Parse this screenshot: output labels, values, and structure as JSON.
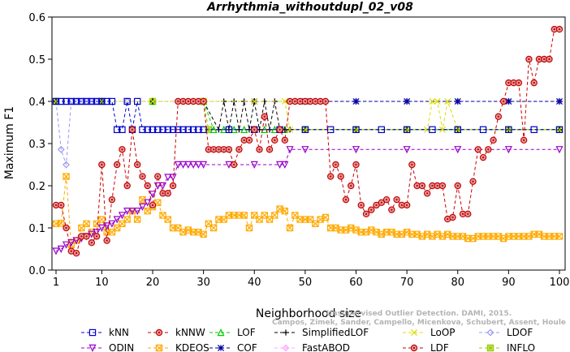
{
  "chart_data": {
    "type": "line",
    "title": "Arrhythmia_withoutdupl_02_v08",
    "xlabel": "Neighborhood size",
    "ylabel": "Maximum F1",
    "xlim": [
      0,
      100
    ],
    "ylim": [
      0,
      0.6
    ],
    "xticks": [
      1,
      10,
      20,
      30,
      40,
      50,
      60,
      70,
      80,
      90,
      100
    ],
    "yticks": [
      0.0,
      0.1,
      0.2,
      0.3,
      0.4,
      0.5,
      0.6
    ],
    "xtick_labels": [
      "1",
      "10",
      "20",
      "30",
      "40",
      "50",
      "60",
      "70",
      "80",
      "90",
      "100"
    ],
    "ytick_labels": [
      "0.0",
      "0.1",
      "0.2",
      "0.3",
      "0.4",
      "0.5",
      "0.6"
    ],
    "watermark": [
      "Campos, Zimek, Sander, Campello, Micenkova, Schubert, Assent, Houle",
      "Unsupervised Outlier Detection. DAMI, 2015."
    ],
    "series": [
      {
        "name": "kNN",
        "color": "#0000cc",
        "marker": "square",
        "x": [
          1,
          2,
          3,
          4,
          5,
          6,
          7,
          8,
          9,
          10,
          11,
          12,
          13,
          14,
          15,
          16,
          17,
          18,
          19,
          20,
          21,
          22,
          23,
          24,
          25,
          26,
          27,
          28,
          29,
          30,
          35,
          40,
          45,
          50,
          55,
          60,
          65,
          70,
          75,
          80,
          85,
          90,
          95,
          100
        ],
        "y": [
          0.4,
          0.4,
          0.4,
          0.4,
          0.4,
          0.4,
          0.4,
          0.4,
          0.4,
          0.4,
          0.4,
          0.4,
          0.333,
          0.333,
          0.4,
          0.333,
          0.4,
          0.333,
          0.333,
          0.333,
          0.333,
          0.333,
          0.333,
          0.333,
          0.333,
          0.333,
          0.333,
          0.333,
          0.333,
          0.333,
          0.333,
          0.333,
          0.333,
          0.333,
          0.333,
          0.333,
          0.333,
          0.333,
          0.333,
          0.333,
          0.333,
          0.333,
          0.333,
          0.333
        ]
      },
      {
        "name": "kNNW",
        "color": "#cc0000",
        "marker": "circle",
        "x": [
          1,
          2,
          3,
          4,
          5,
          6,
          7,
          8,
          9,
          10,
          11,
          12,
          13,
          14,
          15,
          16,
          17,
          18,
          19,
          20,
          21,
          22,
          23,
          24,
          25,
          26,
          27,
          28,
          29,
          30,
          31,
          32,
          33,
          34,
          35,
          36,
          37,
          38,
          39,
          40,
          41,
          42,
          43,
          44,
          45,
          46,
          47,
          48,
          49,
          50,
          51,
          52,
          53,
          54,
          55,
          56,
          57,
          58,
          59,
          60,
          61,
          62,
          63,
          64,
          65,
          66,
          67,
          68,
          69,
          70,
          71,
          72,
          73,
          74,
          75,
          76,
          77,
          78,
          79,
          80,
          81,
          82,
          83,
          84,
          85,
          86,
          87,
          88,
          89,
          90,
          91,
          92,
          93,
          94,
          95,
          96,
          97,
          98,
          99,
          100
        ],
        "y": [
          0.154,
          0.154,
          0.1,
          0.045,
          0.04,
          0.08,
          0.08,
          0.065,
          0.08,
          0.25,
          0.07,
          0.167,
          0.25,
          0.286,
          0.2,
          0.333,
          0.25,
          0.222,
          0.2,
          0.154,
          0.222,
          0.182,
          0.182,
          0.2,
          0.4,
          0.4,
          0.4,
          0.4,
          0.4,
          0.4,
          0.286,
          0.286,
          0.286,
          0.286,
          0.286,
          0.25,
          0.286,
          0.308,
          0.308,
          0.333,
          0.286,
          0.364,
          0.286,
          0.308,
          0.333,
          0.308,
          0.4,
          0.4,
          0.4,
          0.4,
          0.4,
          0.4,
          0.4,
          0.4,
          0.222,
          0.25,
          0.222,
          0.167,
          0.2,
          0.25,
          0.154,
          0.133,
          0.143,
          0.154,
          0.16,
          0.167,
          0.143,
          0.167,
          0.154,
          0.154,
          0.25,
          0.2,
          0.2,
          0.182,
          0.2,
          0.2,
          0.2,
          0.121,
          0.125,
          0.2,
          0.133,
          0.133,
          0.21,
          0.286,
          0.267,
          0.286,
          0.308,
          0.364,
          0.4,
          0.444,
          0.444,
          0.444,
          0.308,
          0.5,
          0.444,
          0.5,
          0.5,
          0.5,
          0.571,
          0.571
        ]
      },
      {
        "name": "LOF",
        "color": "#00cc00",
        "marker": "triangle",
        "x": [
          1,
          10,
          20,
          30,
          32,
          34,
          36,
          38,
          40,
          42,
          44,
          46,
          50,
          60,
          70,
          80,
          90,
          100
        ],
        "y": [
          0.4,
          0.4,
          0.4,
          0.4,
          0.333,
          0.333,
          0.333,
          0.333,
          0.333,
          0.333,
          0.333,
          0.333,
          0.333,
          0.333,
          0.333,
          0.333,
          0.333,
          0.333
        ]
      },
      {
        "name": "SimplifiedLOF",
        "color": "#000000",
        "marker": "plus",
        "x": [
          1,
          10,
          20,
          30,
          33,
          34,
          35,
          36,
          37,
          38,
          39,
          40,
          41,
          42,
          43,
          44,
          45,
          46,
          47,
          50,
          60,
          70,
          80,
          90,
          100
        ],
        "y": [
          0.4,
          0.4,
          0.4,
          0.4,
          0.333,
          0.4,
          0.333,
          0.4,
          0.333,
          0.4,
          0.333,
          0.4,
          0.333,
          0.4,
          0.333,
          0.4,
          0.333,
          0.333,
          0.333,
          0.333,
          0.333,
          0.333,
          0.333,
          0.333,
          0.333
        ]
      },
      {
        "name": "LoOP",
        "color": "#dddd00",
        "marker": "x",
        "x": [
          1,
          10,
          20,
          30,
          40,
          46,
          47,
          50,
          60,
          70,
          74,
          75,
          76,
          77,
          78,
          80,
          90,
          100
        ],
        "y": [
          0.4,
          0.4,
          0.4,
          0.4,
          0.4,
          0.4,
          0.333,
          0.333,
          0.333,
          0.333,
          0.333,
          0.4,
          0.4,
          0.333,
          0.4,
          0.333,
          0.333,
          0.333
        ]
      },
      {
        "name": "LDOF",
        "color": "#9999ee",
        "marker": "diamond",
        "x": [
          1,
          2,
          3,
          4,
          5,
          6,
          7,
          8,
          9,
          10,
          15,
          20,
          30,
          40,
          50,
          60,
          70,
          80,
          90,
          100
        ],
        "y": [
          0.4,
          0.286,
          0.25,
          0.4,
          0.4,
          0.4,
          0.4,
          0.4,
          0.4,
          0.4,
          0.4,
          0.4,
          0.4,
          0.4,
          0.4,
          0.4,
          0.4,
          0.4,
          0.4,
          0.4
        ]
      },
      {
        "name": "ODIN",
        "color": "#9900cc",
        "marker": "triangle-down",
        "x": [
          1,
          2,
          3,
          4,
          5,
          6,
          7,
          8,
          9,
          10,
          11,
          12,
          13,
          14,
          15,
          16,
          17,
          18,
          19,
          20,
          21,
          22,
          23,
          24,
          25,
          26,
          27,
          28,
          29,
          30,
          35,
          40,
          45,
          46,
          47,
          50,
          60,
          70,
          80,
          90,
          100
        ],
        "y": [
          0.045,
          0.05,
          0.06,
          0.065,
          0.07,
          0.075,
          0.08,
          0.085,
          0.09,
          0.1,
          0.105,
          0.11,
          0.12,
          0.13,
          0.14,
          0.14,
          0.14,
          0.15,
          0.16,
          0.18,
          0.2,
          0.2,
          0.22,
          0.22,
          0.25,
          0.25,
          0.25,
          0.25,
          0.25,
          0.25,
          0.25,
          0.25,
          0.25,
          0.25,
          0.286,
          0.286,
          0.286,
          0.286,
          0.286,
          0.286,
          0.286
        ]
      },
      {
        "name": "KDEOS",
        "color": "#ffaa00",
        "marker": "square-x",
        "x": [
          1,
          2,
          3,
          4,
          5,
          6,
          7,
          8,
          9,
          10,
          11,
          12,
          13,
          14,
          15,
          16,
          17,
          18,
          19,
          20,
          21,
          22,
          23,
          24,
          25,
          26,
          27,
          28,
          29,
          30,
          31,
          32,
          33,
          34,
          35,
          36,
          37,
          38,
          39,
          40,
          41,
          42,
          43,
          44,
          45,
          46,
          47,
          48,
          49,
          50,
          51,
          52,
          53,
          54,
          55,
          56,
          57,
          58,
          59,
          60,
          61,
          62,
          63,
          64,
          65,
          66,
          67,
          68,
          69,
          70,
          71,
          72,
          73,
          74,
          75,
          76,
          77,
          78,
          79,
          80,
          81,
          82,
          83,
          84,
          85,
          86,
          87,
          88,
          89,
          90,
          91,
          92,
          93,
          94,
          95,
          96,
          97,
          98,
          99,
          100
        ],
        "y": [
          0.11,
          0.111,
          0.222,
          0.06,
          0.07,
          0.1,
          0.11,
          0.09,
          0.11,
          0.12,
          0.09,
          0.09,
          0.1,
          0.11,
          0.12,
          0.14,
          0.12,
          0.167,
          0.14,
          0.15,
          0.16,
          0.13,
          0.12,
          0.1,
          0.1,
          0.09,
          0.095,
          0.09,
          0.09,
          0.085,
          0.11,
          0.1,
          0.12,
          0.12,
          0.13,
          0.13,
          0.13,
          0.13,
          0.1,
          0.13,
          0.12,
          0.13,
          0.12,
          0.13,
          0.145,
          0.14,
          0.1,
          0.13,
          0.12,
          0.12,
          0.12,
          0.11,
          0.12,
          0.125,
          0.1,
          0.1,
          0.095,
          0.095,
          0.1,
          0.095,
          0.09,
          0.09,
          0.095,
          0.09,
          0.085,
          0.09,
          0.09,
          0.085,
          0.085,
          0.09,
          0.085,
          0.085,
          0.08,
          0.085,
          0.08,
          0.085,
          0.08,
          0.085,
          0.08,
          0.08,
          0.08,
          0.075,
          0.075,
          0.08,
          0.08,
          0.08,
          0.08,
          0.08,
          0.075,
          0.08,
          0.08,
          0.08,
          0.08,
          0.08,
          0.085,
          0.085,
          0.08,
          0.08,
          0.08,
          0.08
        ]
      },
      {
        "name": "COF",
        "color": "#000099",
        "marker": "star",
        "x": [
          1,
          10,
          20,
          30,
          40,
          50,
          60,
          70,
          80,
          90,
          100
        ],
        "y": [
          0.4,
          0.4,
          0.4,
          0.4,
          0.4,
          0.4,
          0.4,
          0.4,
          0.4,
          0.4,
          0.4
        ]
      },
      {
        "name": "FastABOD",
        "color": "#ffaaff",
        "marker": "diamond-filled",
        "x": [
          1,
          10,
          20,
          30,
          40,
          50,
          60,
          70,
          80,
          90,
          100
        ],
        "y": [
          0.4,
          0.4,
          0.4,
          0.4,
          0.4,
          0.4,
          0.4,
          0.4,
          0.4,
          0.4,
          0.4
        ]
      },
      {
        "name": "INFLO",
        "color": "#99cc00",
        "marker": "square-star",
        "x": [
          1,
          10,
          20,
          30,
          31,
          40,
          50,
          60,
          70,
          80,
          90,
          100
        ],
        "y": [
          0.4,
          0.4,
          0.4,
          0.4,
          0.333,
          0.333,
          0.333,
          0.333,
          0.333,
          0.333,
          0.333,
          0.333
        ]
      }
    ]
  }
}
